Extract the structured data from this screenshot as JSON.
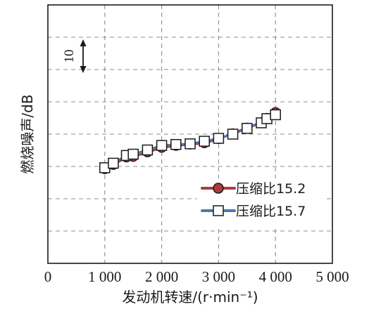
{
  "chart_data": {
    "type": "line",
    "xlabel": "发动机转速/(r·min⁻¹)",
    "ylabel": "燃烧噪声/dB",
    "xlim": [
      0,
      5000
    ],
    "x_ticks": [
      0,
      1000,
      2000,
      3000,
      4000,
      5000
    ],
    "x_tick_labels": [
      "0",
      "1 000",
      "2 000",
      "3 000",
      "4 000",
      "5 000"
    ],
    "ylim": [
      0,
      80
    ],
    "y_ticks": [
      0,
      10,
      20,
      30,
      40,
      50,
      60,
      70,
      80
    ],
    "y_tick_labels_shown": false,
    "grid": true,
    "legend_position": "bottom-right",
    "scale_annotation": "10",
    "series": [
      {
        "name": "压缩比15.2",
        "color": "#b03a3a",
        "marker": "circle",
        "x": [
          1000,
          1150,
          1380,
          1500,
          1750,
          2000,
          2250,
          2500,
          2750,
          3000,
          3250,
          3500,
          3750,
          3850,
          4000
        ],
        "y": [
          29.2,
          30.5,
          32.8,
          33.0,
          34.4,
          35.8,
          36.4,
          36.8,
          37.2,
          38.5,
          40.2,
          42.0,
          43.6,
          45.0,
          46.8
        ]
      },
      {
        "name": "压缩比15.7",
        "color": "#4a78b0",
        "marker": "square",
        "x": [
          1000,
          1150,
          1380,
          1500,
          1750,
          2000,
          2250,
          2500,
          2750,
          3000,
          3250,
          3500,
          3750,
          3850,
          4000
        ],
        "y": [
          29.6,
          31.0,
          33.4,
          33.8,
          35.1,
          36.5,
          36.8,
          37.0,
          37.8,
          38.7,
          40.0,
          41.8,
          43.5,
          44.8,
          46.0
        ]
      }
    ]
  }
}
